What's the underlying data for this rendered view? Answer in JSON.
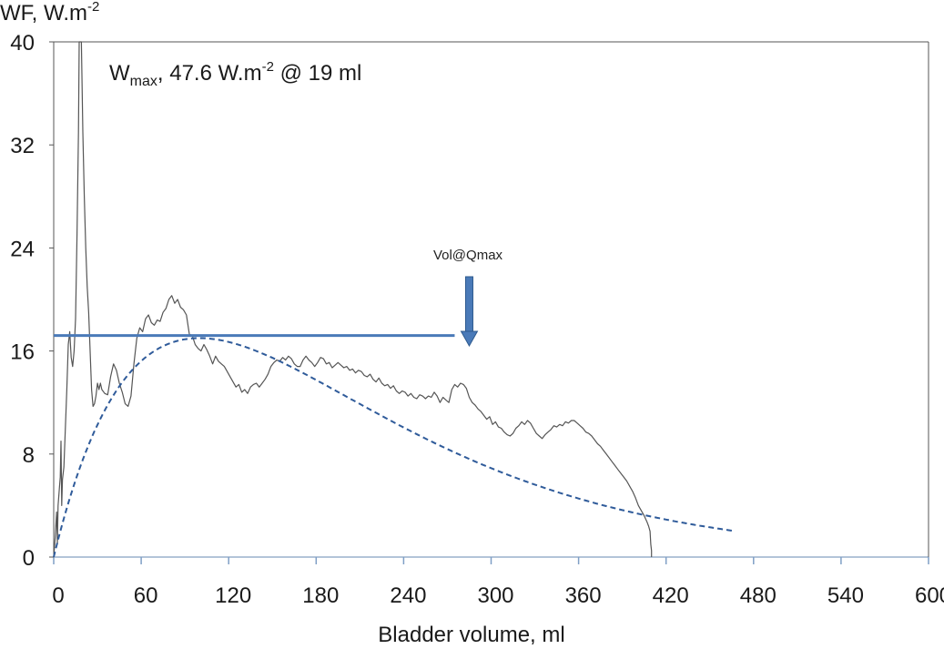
{
  "chart_data": {
    "type": "line",
    "ylabel": "WF, W.m",
    "ylabel_sup": "-2",
    "xlabel": "Bladder volume, ml",
    "xlim": [
      0,
      600
    ],
    "ylim": [
      0,
      40
    ],
    "x_ticks": [
      "0",
      "60",
      "120",
      "180",
      "240",
      "300",
      "360",
      "420",
      "480",
      "540",
      "600"
    ],
    "y_ticks": [
      "0",
      "8",
      "16",
      "24",
      "32",
      "40"
    ],
    "grid": false,
    "annotation_main": {
      "w": "W",
      "w_sub": "max",
      "mid": ", 47.6 W.m",
      "sup": "-2",
      "tail": " @ 19 ml"
    },
    "annotation_arrow": {
      "label": "Vol@Qmax",
      "x": 285,
      "color": "#4a7ab8"
    },
    "hline": {
      "y": 17.2,
      "x_start": 0,
      "x_end": 275,
      "color": "#4a7ab8"
    },
    "series": [
      {
        "style": "solid",
        "color": "#555555",
        "points": [
          [
            0,
            0
          ],
          [
            1,
            1.5
          ],
          [
            2,
            3.5
          ],
          [
            2.5,
            1
          ],
          [
            3,
            4
          ],
          [
            4,
            5.5
          ],
          [
            4.5,
            6.2
          ],
          [
            5,
            9
          ],
          [
            5.5,
            4
          ],
          [
            6,
            6
          ],
          [
            7,
            7
          ],
          [
            8,
            10
          ],
          [
            9,
            13
          ],
          [
            10,
            16.5
          ],
          [
            11,
            17.5
          ],
          [
            12,
            15.5
          ],
          [
            13,
            14.8
          ],
          [
            14,
            16
          ],
          [
            15,
            18.5
          ],
          [
            16,
            25
          ],
          [
            17,
            33
          ],
          [
            17.5,
            40
          ],
          [
            19,
            40
          ],
          [
            20,
            33
          ],
          [
            21,
            28
          ],
          [
            22,
            24
          ],
          [
            23,
            21
          ],
          [
            24,
            19
          ],
          [
            25,
            16
          ],
          [
            26,
            13
          ],
          [
            27,
            11.7
          ],
          [
            28,
            11.9
          ],
          [
            29,
            12.5
          ],
          [
            30,
            13.5
          ],
          [
            31,
            13
          ],
          [
            32,
            13.5
          ],
          [
            33,
            13
          ],
          [
            35,
            12.7
          ],
          [
            37,
            12.6
          ],
          [
            39,
            14
          ],
          [
            41,
            15
          ],
          [
            43,
            14.5
          ],
          [
            45,
            13.5
          ],
          [
            47,
            12.8
          ],
          [
            49,
            11.9
          ],
          [
            51,
            11.7
          ],
          [
            53,
            12.5
          ],
          [
            55,
            15
          ],
          [
            57,
            17
          ],
          [
            59,
            17.8
          ],
          [
            61,
            17.5
          ],
          [
            63,
            18.5
          ],
          [
            65,
            18.8
          ],
          [
            67,
            18.2
          ],
          [
            69,
            18
          ],
          [
            71,
            18.4
          ],
          [
            73,
            18.3
          ],
          [
            75,
            19
          ],
          [
            77,
            19.3
          ],
          [
            79,
            20
          ],
          [
            81,
            20.3
          ],
          [
            83,
            19.7
          ],
          [
            85,
            20
          ],
          [
            87,
            19.4
          ],
          [
            89,
            19.2
          ],
          [
            91,
            18.8
          ],
          [
            93,
            17.3
          ],
          [
            95,
            17.2
          ],
          [
            97,
            16.5
          ],
          [
            99,
            16.2
          ],
          [
            101,
            16
          ],
          [
            103,
            16.5
          ],
          [
            105,
            16.1
          ],
          [
            107,
            15.6
          ],
          [
            109,
            15
          ],
          [
            111,
            15.6
          ],
          [
            113,
            15.2
          ],
          [
            115,
            15
          ],
          [
            117,
            14.8
          ],
          [
            119,
            14.4
          ],
          [
            121,
            14
          ],
          [
            123,
            13.6
          ],
          [
            125,
            13.2
          ],
          [
            127,
            13.4
          ],
          [
            129,
            12.8
          ],
          [
            131,
            13
          ],
          [
            133,
            12.7
          ],
          [
            135,
            13.2
          ],
          [
            137,
            13.4
          ],
          [
            139,
            13.5
          ],
          [
            141,
            13.2
          ],
          [
            143,
            13.5
          ],
          [
            145,
            13.8
          ],
          [
            147,
            14.2
          ],
          [
            149,
            14.8
          ],
          [
            151,
            15.1
          ],
          [
            153,
            15.3
          ],
          [
            155,
            15.2
          ],
          [
            157,
            15.5
          ],
          [
            159,
            15.3
          ],
          [
            161,
            15.6
          ],
          [
            163,
            15.4
          ],
          [
            165,
            15
          ],
          [
            167,
            14.8
          ],
          [
            169,
            14.8
          ],
          [
            171,
            15.3
          ],
          [
            173,
            15.6
          ],
          [
            175,
            15.3
          ],
          [
            177,
            15.1
          ],
          [
            179,
            14.8
          ],
          [
            181,
            15.1
          ],
          [
            183,
            15.5
          ],
          [
            185,
            15.4
          ],
          [
            187,
            15
          ],
          [
            189,
            15.1
          ],
          [
            191,
            14.7
          ],
          [
            193,
            14.9
          ],
          [
            195,
            15.1
          ],
          [
            197,
            14.9
          ],
          [
            199,
            14.7
          ],
          [
            201,
            14.8
          ],
          [
            203,
            14.5
          ],
          [
            205,
            14.6
          ],
          [
            207,
            14.3
          ],
          [
            209,
            14.5
          ],
          [
            211,
            14.4
          ],
          [
            213,
            14.1
          ],
          [
            215,
            14
          ],
          [
            217,
            14.2
          ],
          [
            219,
            13.8
          ],
          [
            221,
            13.6
          ],
          [
            223,
            13.9
          ],
          [
            225,
            13.5
          ],
          [
            227,
            13.3
          ],
          [
            229,
            13.4
          ],
          [
            231,
            13.1
          ],
          [
            233,
            13.3
          ],
          [
            235,
            12.9
          ],
          [
            237,
            12.7
          ],
          [
            239,
            12.9
          ],
          [
            241,
            12.8
          ],
          [
            243,
            12.5
          ],
          [
            245,
            12.7
          ],
          [
            247,
            12.4
          ],
          [
            249,
            12.3
          ],
          [
            251,
            12.6
          ],
          [
            253,
            12.5
          ],
          [
            255,
            12.3
          ],
          [
            257,
            12.5
          ],
          [
            259,
            12.4
          ],
          [
            261,
            12.8
          ],
          [
            263,
            12.5
          ],
          [
            265,
            12
          ],
          [
            267,
            12.4
          ],
          [
            269,
            12.2
          ],
          [
            271,
            12
          ],
          [
            273,
            13
          ],
          [
            275,
            13.4
          ],
          [
            277,
            13.2
          ],
          [
            279,
            13.5
          ],
          [
            281,
            13.4
          ],
          [
            283,
            13.1
          ],
          [
            285,
            12.4
          ],
          [
            287,
            12
          ],
          [
            289,
            11.8
          ],
          [
            291,
            11.5
          ],
          [
            293,
            11.3
          ],
          [
            295,
            11
          ],
          [
            297,
            10.7
          ],
          [
            299,
            10.9
          ],
          [
            301,
            10.3
          ],
          [
            303,
            10.5
          ],
          [
            305,
            10.1
          ],
          [
            307,
            10
          ],
          [
            309,
            9.7
          ],
          [
            311,
            9.5
          ],
          [
            313,
            9.4
          ],
          [
            315,
            9.6
          ],
          [
            317,
            10
          ],
          [
            319,
            10.2
          ],
          [
            321,
            10.5
          ],
          [
            323,
            10.3
          ],
          [
            325,
            10.6
          ],
          [
            327,
            10.4
          ],
          [
            329,
            10
          ],
          [
            331,
            9.6
          ],
          [
            333,
            9.4
          ],
          [
            335,
            9.2
          ],
          [
            337,
            9.5
          ],
          [
            339,
            9.7
          ],
          [
            341,
            9.9
          ],
          [
            343,
            10.2
          ],
          [
            345,
            10.1
          ],
          [
            347,
            10.3
          ],
          [
            349,
            10.2
          ],
          [
            351,
            10.5
          ],
          [
            353,
            10.4
          ],
          [
            355,
            10.6
          ],
          [
            357,
            10.6
          ],
          [
            359,
            10.4
          ],
          [
            361,
            10.2
          ],
          [
            363,
            10
          ],
          [
            365,
            9.7
          ],
          [
            367,
            9.6
          ],
          [
            369,
            9.4
          ],
          [
            371,
            9.1
          ],
          [
            373,
            8.8
          ],
          [
            375,
            8.6
          ],
          [
            377,
            8.3
          ],
          [
            379,
            8
          ],
          [
            381,
            7.7
          ],
          [
            383,
            7.4
          ],
          [
            385,
            7.1
          ],
          [
            387,
            6.8
          ],
          [
            389,
            6.5
          ],
          [
            391,
            6.2
          ],
          [
            393,
            5.9
          ],
          [
            395,
            5.5
          ],
          [
            397,
            5.1
          ],
          [
            399,
            4.6
          ],
          [
            401,
            4
          ],
          [
            403,
            3.6
          ],
          [
            405,
            3.2
          ],
          [
            407,
            2.7
          ],
          [
            408,
            2.4
          ],
          [
            409,
            2
          ],
          [
            409.5,
            1
          ],
          [
            410,
            0.5
          ],
          [
            410,
            0
          ]
        ]
      },
      {
        "style": "dashed",
        "color": "#2f5b9a",
        "fit": {
          "peak_x": 100,
          "peak_y": 17.0,
          "end_x": 466
        }
      }
    ]
  }
}
